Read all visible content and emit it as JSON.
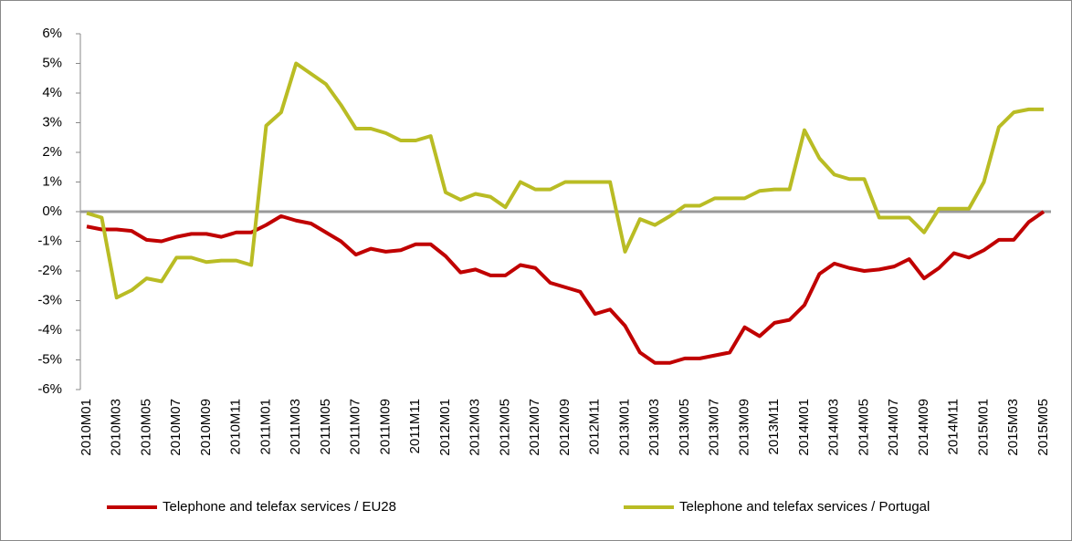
{
  "chart_data": {
    "type": "line",
    "categories": [
      "2010M01",
      null,
      "2010M03",
      null,
      "2010M05",
      null,
      "2010M07",
      null,
      "2010M09",
      null,
      "2010M11",
      null,
      "2011M01",
      null,
      "2011M03",
      null,
      "2011M05",
      null,
      "2011M07",
      null,
      "2011M09",
      null,
      "2011M11",
      null,
      "2012M01",
      null,
      "2012M03",
      null,
      "2012M05",
      null,
      "2012M07",
      null,
      "2012M09",
      null,
      "2012M11",
      null,
      "2013M01",
      null,
      "2013M03",
      null,
      "2013M05",
      null,
      "2013M07",
      null,
      "2013M09",
      null,
      "2013M11",
      null,
      "2014M01",
      null,
      "2014M03",
      null,
      "2014M05",
      null,
      "2014M07",
      null,
      "2014M09",
      null,
      "2014M11",
      null,
      "2015M01",
      null,
      "2015M03",
      null,
      "2015M05"
    ],
    "series": [
      {
        "name": "Telephone and telefax services / EU28",
        "color": "#c00000",
        "values": [
          -0.5,
          -0.6,
          -0.6,
          -0.65,
          -0.95,
          -1.0,
          -0.85,
          -0.75,
          -0.75,
          -0.85,
          -0.7,
          -0.7,
          -0.45,
          -0.15,
          -0.3,
          -0.4,
          -0.7,
          -1.0,
          -1.45,
          -1.25,
          -1.35,
          -1.3,
          -1.1,
          -1.1,
          -1.5,
          -2.05,
          -1.95,
          -2.15,
          -2.15,
          -1.8,
          -1.9,
          -2.4,
          -2.55,
          -2.7,
          -3.45,
          -3.3,
          -3.85,
          -4.75,
          -5.1,
          -5.1,
          -4.95,
          -4.95,
          -4.85,
          -4.75,
          -3.9,
          -4.2,
          -3.75,
          -3.65,
          -3.15,
          -2.1,
          -1.75,
          -1.9,
          -2.0,
          -1.95,
          -1.85,
          -1.6,
          -2.25,
          -1.9,
          -1.4,
          -1.55,
          -1.3,
          -0.95,
          -0.95,
          -0.35,
          0
        ]
      },
      {
        "name": "Telephone and telefax services / Portugal",
        "color": "#b9bc24",
        "values": [
          -0.05,
          -0.2,
          -2.9,
          -2.65,
          -2.25,
          -2.35,
          -1.55,
          -1.55,
          -1.7,
          -1.65,
          -1.65,
          -1.8,
          2.9,
          3.35,
          5.0,
          4.65,
          4.3,
          3.6,
          2.8,
          2.8,
          2.65,
          2.4,
          2.4,
          2.55,
          0.65,
          0.4,
          0.6,
          0.5,
          0.15,
          1.0,
          0.75,
          0.75,
          1.0,
          1.0,
          1.0,
          1.0,
          -1.35,
          -0.25,
          -0.45,
          -0.15,
          0.2,
          0.2,
          0.45,
          0.45,
          0.45,
          0.7,
          0.75,
          0.75,
          2.75,
          1.8,
          1.25,
          1.1,
          1.1,
          -0.2,
          -0.2,
          -0.2,
          -0.7,
          0.1,
          0.1,
          0.1,
          1.0,
          2.85,
          3.35,
          3.45,
          3.45
        ]
      }
    ],
    "ylim": [
      -6,
      6
    ],
    "yticks": [
      {
        "value": -6,
        "label": "-6%"
      },
      {
        "value": -5,
        "label": "-5%"
      },
      {
        "value": -4,
        "label": "-4%"
      },
      {
        "value": -3,
        "label": "-3%"
      },
      {
        "value": -2,
        "label": "-2%"
      },
      {
        "value": -1,
        "label": "-1%"
      },
      {
        "value": 0,
        "label": "0%"
      },
      {
        "value": 1,
        "label": "1%"
      },
      {
        "value": 2,
        "label": "2%"
      },
      {
        "value": 3,
        "label": "3%"
      },
      {
        "value": 4,
        "label": "4%"
      },
      {
        "value": 5,
        "label": "5%"
      },
      {
        "value": 6,
        "label": "6%"
      }
    ],
    "legend": "bottom"
  }
}
